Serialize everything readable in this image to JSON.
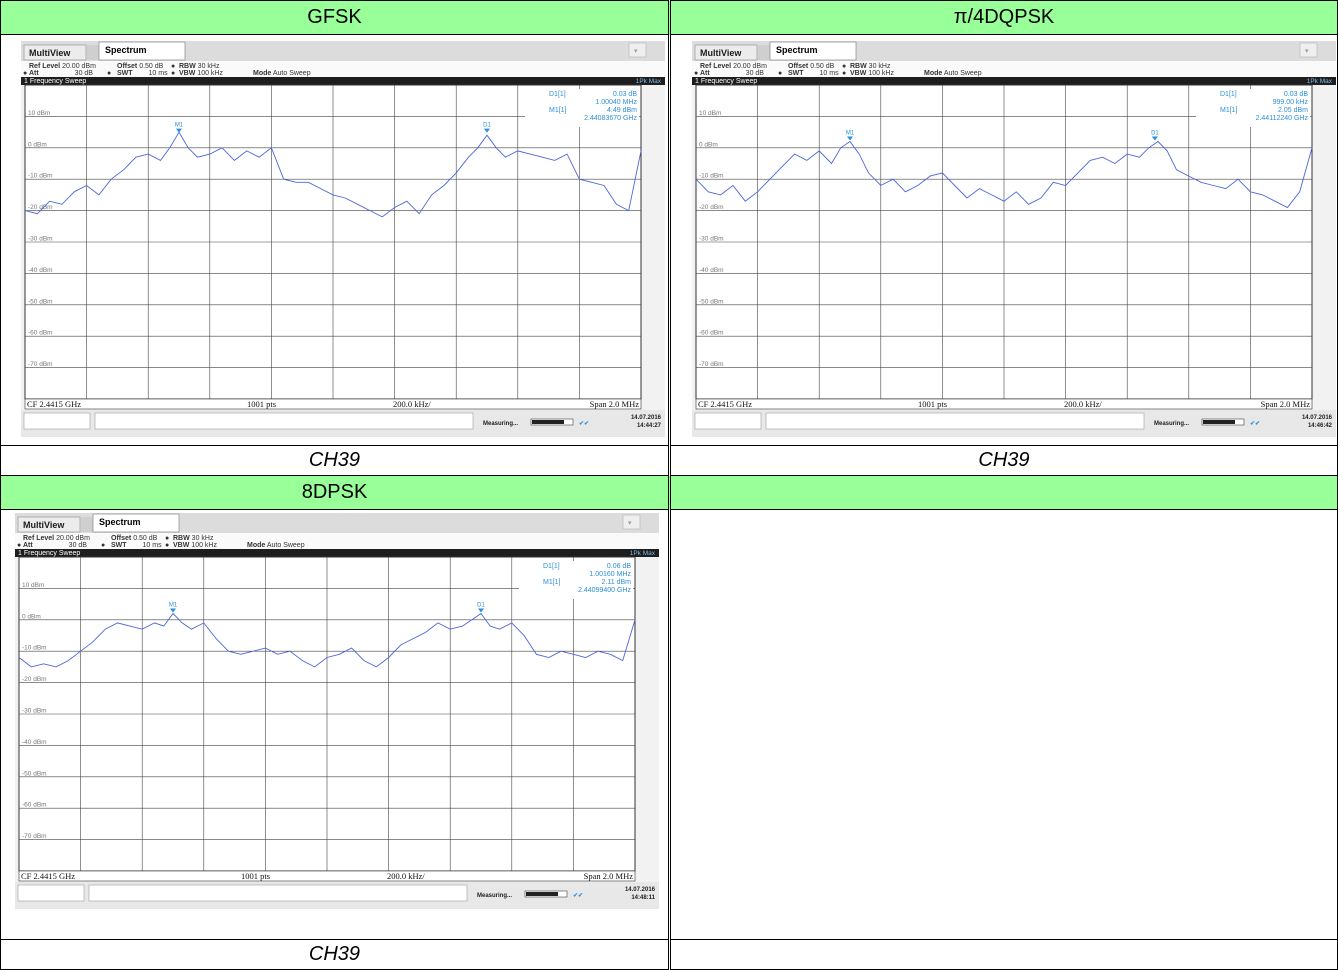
{
  "cells": [
    {
      "header": "GFSK",
      "caption": "CH39"
    },
    {
      "header": "π/4DQPSK",
      "caption": "CH39"
    },
    {
      "header": "8DPSK",
      "caption": "CH39"
    },
    {
      "header": "",
      "caption": ""
    }
  ],
  "chart_data": [
    {
      "type": "line",
      "tabs": {
        "multiview": "MultiView",
        "spectrum": "Spectrum"
      },
      "settings": {
        "ref_level_label": "Ref Level",
        "ref_level_value": "20.00 dBm",
        "offset_label": "Offset",
        "offset_value": "0.50 dB",
        "rbw_label": "RBW",
        "rbw_value": "30 kHz",
        "att_label": "Att",
        "att_value": "30 dB",
        "swt_label": "SWT",
        "swt_value": "10 ms",
        "vbw_label": "VBW",
        "vbw_value": "100 kHz",
        "mode_label": "Mode",
        "mode_value": "Auto Sweep"
      },
      "sweep_title": "1 Frequency Sweep",
      "trace_label": "1Pk Max",
      "y_ticks": [
        "10 dBm",
        "0 dBm",
        "-10 dBm",
        "-20 dBm",
        "-30 dBm",
        "-40 dBm",
        "-50 dBm",
        "-60 dBm",
        "-70 dBm"
      ],
      "y_tick_values": [
        10,
        0,
        -10,
        -20,
        -30,
        -40,
        -50,
        -60,
        -70
      ],
      "ylim": [
        -80,
        20
      ],
      "xlim": [
        -1.0,
        1.0
      ],
      "markers": {
        "d1_label": "D1[1]",
        "d1_value": "0.03 dB",
        "d1_freq": "1.00040 MHz",
        "m1_label": "M1[1]",
        "m1_value": "4.49 dBm",
        "m1_freq": "2.44083670 GHz",
        "m1": {
          "x": -0.5,
          "y": 4.5,
          "name": "M1"
        },
        "d1": {
          "x": 0.5,
          "y": 4.5,
          "name": "D1"
        }
      },
      "footer": {
        "cf": "CF 2.4415 GHz",
        "points": "1001 pts",
        "div": "200.0 kHz/",
        "span": "Span 2.0 MHz"
      },
      "status": {
        "measuring": "Measuring...",
        "date": "14.07.2016",
        "time": "14:44:27"
      },
      "trace": {
        "x": [
          -1.0,
          -0.96,
          -0.92,
          -0.88,
          -0.84,
          -0.8,
          -0.76,
          -0.72,
          -0.68,
          -0.64,
          -0.6,
          -0.56,
          -0.53,
          -0.5,
          -0.47,
          -0.44,
          -0.4,
          -0.36,
          -0.32,
          -0.28,
          -0.24,
          -0.2,
          -0.16,
          -0.12,
          -0.08,
          -0.04,
          0.0,
          0.04,
          0.08,
          0.12,
          0.16,
          0.2,
          0.24,
          0.28,
          0.32,
          0.36,
          0.4,
          0.44,
          0.47,
          0.5,
          0.53,
          0.56,
          0.6,
          0.64,
          0.68,
          0.72,
          0.76,
          0.8,
          0.84,
          0.88,
          0.92,
          0.96,
          1.0
        ],
        "y": [
          -20,
          -21,
          -17,
          -18,
          -14,
          -12,
          -15,
          -10,
          -7,
          -3,
          -2,
          -4,
          0,
          5,
          0,
          -3,
          -2,
          0,
          -4,
          -1,
          -3,
          0,
          -10,
          -11,
          -11,
          -13,
          -15,
          -16,
          -18,
          -20,
          -22,
          -19,
          -17,
          -21,
          -15,
          -12,
          -8,
          -3,
          0,
          4,
          0,
          -3,
          -1,
          -2,
          -3,
          -4,
          -2,
          -10,
          -11,
          -12,
          -18,
          -20,
          -1
        ]
      }
    },
    {
      "type": "line",
      "tabs": {
        "multiview": "MultiView",
        "spectrum": "Spectrum"
      },
      "settings": {
        "ref_level_label": "Ref Level",
        "ref_level_value": "20.00 dBm",
        "offset_label": "Offset",
        "offset_value": "0.50 dB",
        "rbw_label": "RBW",
        "rbw_value": "30 kHz",
        "att_label": "Att",
        "att_value": "30 dB",
        "swt_label": "SWT",
        "swt_value": "10 ms",
        "vbw_label": "VBW",
        "vbw_value": "100 kHz",
        "mode_label": "Mode",
        "mode_value": "Auto Sweep"
      },
      "sweep_title": "1 Frequency Sweep",
      "trace_label": "1Pk Max",
      "y_ticks": [
        "10 dBm",
        "0 dBm",
        "-10 dBm",
        "-20 dBm",
        "-30 dBm",
        "-40 dBm",
        "-50 dBm",
        "-60 dBm",
        "-70 dBm"
      ],
      "y_tick_values": [
        10,
        0,
        -10,
        -20,
        -30,
        -40,
        -50,
        -60,
        -70
      ],
      "ylim": [
        -80,
        20
      ],
      "xlim": [
        -1.0,
        1.0
      ],
      "markers": {
        "d1_label": "D1[1]",
        "d1_value": "0.03 dB",
        "d1_freq": "999.00 kHz",
        "m1_label": "M1[1]",
        "m1_value": "2.05 dBm",
        "m1_freq": "2.44112240 GHz",
        "m1": {
          "x": -0.5,
          "y": 2.0,
          "name": "M1"
        },
        "d1": {
          "x": 0.49,
          "y": 2.0,
          "name": "D1"
        }
      },
      "footer": {
        "cf": "CF 2.4415 GHz",
        "points": "1001 pts",
        "div": "200.0 kHz/",
        "span": "Span 2.0 MHz"
      },
      "status": {
        "measuring": "Measuring...",
        "date": "14.07.2016",
        "time": "14:46:42"
      },
      "trace": {
        "x": [
          -1.0,
          -0.96,
          -0.92,
          -0.88,
          -0.84,
          -0.8,
          -0.76,
          -0.72,
          -0.68,
          -0.64,
          -0.6,
          -0.56,
          -0.53,
          -0.5,
          -0.47,
          -0.44,
          -0.4,
          -0.36,
          -0.32,
          -0.28,
          -0.24,
          -0.2,
          -0.16,
          -0.12,
          -0.08,
          -0.04,
          0.0,
          0.04,
          0.08,
          0.12,
          0.16,
          0.2,
          0.24,
          0.28,
          0.32,
          0.36,
          0.4,
          0.44,
          0.47,
          0.5,
          0.53,
          0.56,
          0.6,
          0.64,
          0.68,
          0.72,
          0.76,
          0.8,
          0.84,
          0.88,
          0.92,
          0.96,
          1.0
        ],
        "y": [
          -10,
          -14,
          -15,
          -12,
          -17,
          -14,
          -10,
          -6,
          -2,
          -4,
          -1,
          -5,
          0,
          2,
          -2,
          -8,
          -12,
          -10,
          -14,
          -12,
          -9,
          -8,
          -12,
          -16,
          -13,
          -15,
          -17,
          -14,
          -18,
          -16,
          -11,
          -12,
          -8,
          -4,
          -3,
          -5,
          -2,
          -3,
          0,
          2,
          -1,
          -7,
          -9,
          -11,
          -12,
          -13,
          -10,
          -14,
          -15,
          -17,
          -19,
          -14,
          0
        ]
      }
    },
    {
      "type": "line",
      "tabs": {
        "multiview": "MultiView",
        "spectrum": "Spectrum"
      },
      "settings": {
        "ref_level_label": "Ref Level",
        "ref_level_value": "20.00 dBm",
        "offset_label": "Offset",
        "offset_value": "0.50 dB",
        "rbw_label": "RBW",
        "rbw_value": "30 kHz",
        "att_label": "Att",
        "att_value": "30 dB",
        "swt_label": "SWT",
        "swt_value": "10 ms",
        "vbw_label": "VBW",
        "vbw_value": "100 kHz",
        "mode_label": "Mode",
        "mode_value": "Auto Sweep"
      },
      "sweep_title": "1 Frequency Sweep",
      "trace_label": "1Pk Max",
      "y_ticks": [
        "10 dBm",
        "0 dBm",
        "-10 dBm",
        "-20 dBm",
        "-30 dBm",
        "-40 dBm",
        "-50 dBm",
        "-60 dBm",
        "-70 dBm"
      ],
      "y_tick_values": [
        10,
        0,
        -10,
        -20,
        -30,
        -40,
        -50,
        -60,
        -70
      ],
      "ylim": [
        -80,
        20
      ],
      "xlim": [
        -1.0,
        1.0
      ],
      "markers": {
        "d1_label": "D1[1]",
        "d1_value": "0.06 dB",
        "d1_freq": "1.00160 MHz",
        "m1_label": "M1[1]",
        "m1_value": "2.11 dBm",
        "m1_freq": "2.44099400 GHz",
        "m1": {
          "x": -0.5,
          "y": 2.0,
          "name": "M1"
        },
        "d1": {
          "x": 0.5,
          "y": 2.0,
          "name": "D1"
        }
      },
      "footer": {
        "cf": "CF 2.4415 GHz",
        "points": "1001 pts",
        "div": "200.0 kHz/",
        "span": "Span 2.0 MHz"
      },
      "status": {
        "measuring": "Measuring...",
        "date": "14.07.2016",
        "time": "14:48:11"
      },
      "trace": {
        "x": [
          -1.0,
          -0.96,
          -0.92,
          -0.88,
          -0.84,
          -0.8,
          -0.76,
          -0.72,
          -0.68,
          -0.64,
          -0.6,
          -0.56,
          -0.53,
          -0.5,
          -0.47,
          -0.44,
          -0.4,
          -0.36,
          -0.32,
          -0.28,
          -0.24,
          -0.2,
          -0.16,
          -0.12,
          -0.08,
          -0.04,
          0.0,
          0.04,
          0.08,
          0.12,
          0.16,
          0.2,
          0.24,
          0.28,
          0.32,
          0.36,
          0.4,
          0.44,
          0.47,
          0.5,
          0.53,
          0.56,
          0.6,
          0.64,
          0.68,
          0.72,
          0.76,
          0.8,
          0.84,
          0.88,
          0.92,
          0.96,
          1.0
        ],
        "y": [
          -12,
          -15,
          -14,
          -15,
          -13,
          -10,
          -7,
          -3,
          -1,
          -2,
          -3,
          -1,
          -2,
          2,
          -1,
          -3,
          -1,
          -6,
          -10,
          -11,
          -10,
          -9,
          -11,
          -10,
          -13,
          -15,
          -12,
          -11,
          -9,
          -13,
          -15,
          -12,
          -8,
          -6,
          -4,
          -1,
          -3,
          -2,
          0,
          2,
          -2,
          -3,
          -1,
          -5,
          -11,
          -12,
          -10,
          -11,
          -12,
          -10,
          -11,
          -13,
          0
        ]
      }
    }
  ]
}
